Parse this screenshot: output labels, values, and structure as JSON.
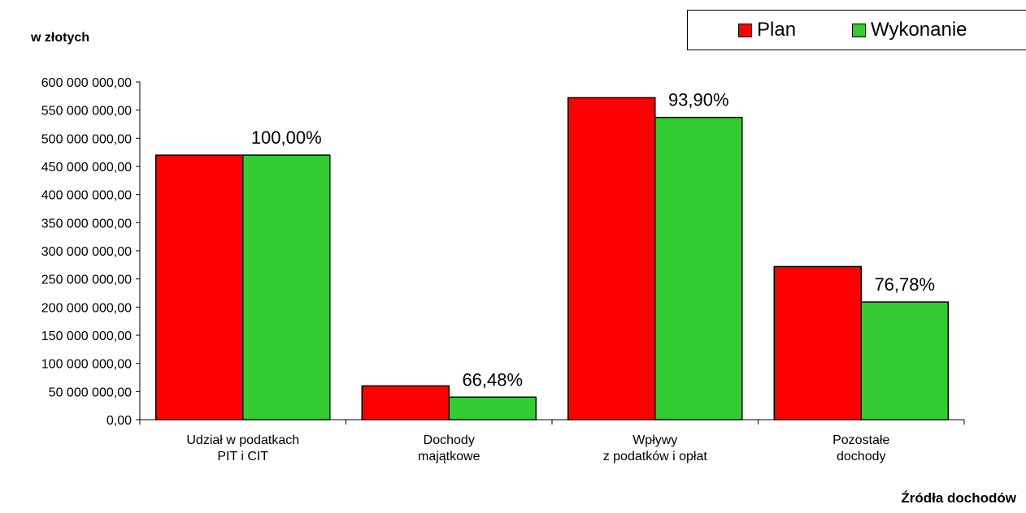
{
  "chart_data": {
    "type": "bar",
    "ylabel": "w złotych",
    "xlabel": "Źródła dochodów",
    "categories": [
      [
        "Udział w podatkach",
        "PIT i CIT"
      ],
      [
        "Dochody",
        "majątkowe"
      ],
      [
        "Wpływy",
        "z podatków i opłat"
      ],
      [
        "Pozostałe",
        "dochody"
      ]
    ],
    "series": [
      {
        "name": "Plan",
        "color": "#ff0000",
        "values": [
          470000000,
          60000000,
          572000000,
          272000000
        ]
      },
      {
        "name": "Wykonanie",
        "color": "#33cc33",
        "values": [
          470000000,
          40000000,
          537000000,
          209000000
        ]
      }
    ],
    "data_labels": [
      "100,00%",
      "66,48%",
      "93,90%",
      "76,78%"
    ],
    "ylim": [
      0,
      600000000
    ],
    "yticks": [
      0,
      50000000,
      100000000,
      150000000,
      200000000,
      250000000,
      300000000,
      350000000,
      400000000,
      450000000,
      500000000,
      550000000,
      600000000
    ],
    "ytick_labels": [
      "0,00",
      "50 000 000,00",
      "100 000 000,00",
      "150 000 000,00",
      "200 000 000,00",
      "250 000 000,00",
      "300 000 000,00",
      "350 000 000,00",
      "400 000 000,00",
      "450 000 000,00",
      "500 000 000,00",
      "550 000 000,00",
      "600 000 000,00"
    ],
    "grid": false,
    "legend_position": "top-right"
  }
}
